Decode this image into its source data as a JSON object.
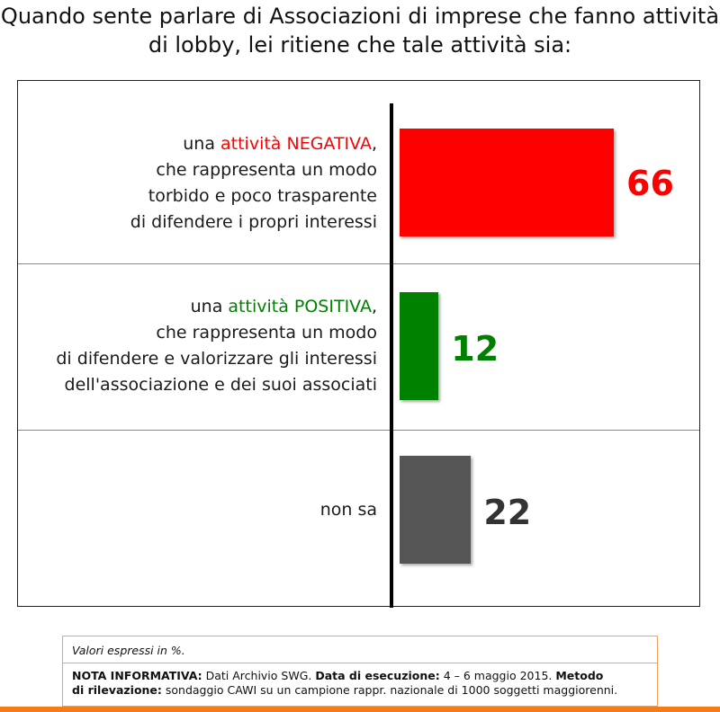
{
  "title": "Quando sente parlare di Associazioni di imprese che fanno attività di lobby, lei ritiene che tale attività sia:",
  "colors": {
    "negative": "#ff0000",
    "positive": "#008000",
    "unknown": "#555555"
  },
  "items": [
    {
      "pre": "una ",
      "highlight": "attività NEGATIVA",
      "post": ",",
      "lines": [
        "che rappresenta un modo",
        "torbido e poco trasparente",
        "di difendere i propri interessi"
      ],
      "value": "66"
    },
    {
      "pre": "una ",
      "highlight": "attività POSITIVA",
      "post": ",",
      "lines": [
        "che rappresenta un modo",
        "di difendere e valorizzare gli interessi",
        "dell'associazione e dei suoi associati"
      ],
      "value": "12"
    },
    {
      "pre": "non sa",
      "highlight": "",
      "post": "",
      "lines": [],
      "value": "22"
    }
  ],
  "chart_data": {
    "type": "bar",
    "orientation": "horizontal",
    "categories": [
      "una attività NEGATIVA, che rappresenta un modo torbido e poco trasparente di difendere i propri interessi",
      "una attività POSITIVA, che rappresenta un modo di difendere e valorizzare gli interessi dell'associazione e dei suoi associati",
      "non sa"
    ],
    "values": [
      66,
      12,
      22
    ],
    "bar_colors": [
      "#ff0000",
      "#008000",
      "#555555"
    ],
    "xlim": [
      0,
      70
    ],
    "grid": false,
    "legend": "none"
  },
  "notes": {
    "unit_note": "Valori espressi in %.",
    "nota_label": "NOTA INFORMATIVA:",
    "nota_text": " Dati Archivio SWG. ",
    "data_label": "Data di esecuzione:",
    "data_text": " 4 – 6 maggio 2015. ",
    "metodo_label": "Metodo",
    "rilevazione_label": "di rilevazione:",
    "rilevazione_text": " sondaggio CAWI su un campione rappr. nazionale di 1000 soggetti maggiorenni."
  }
}
